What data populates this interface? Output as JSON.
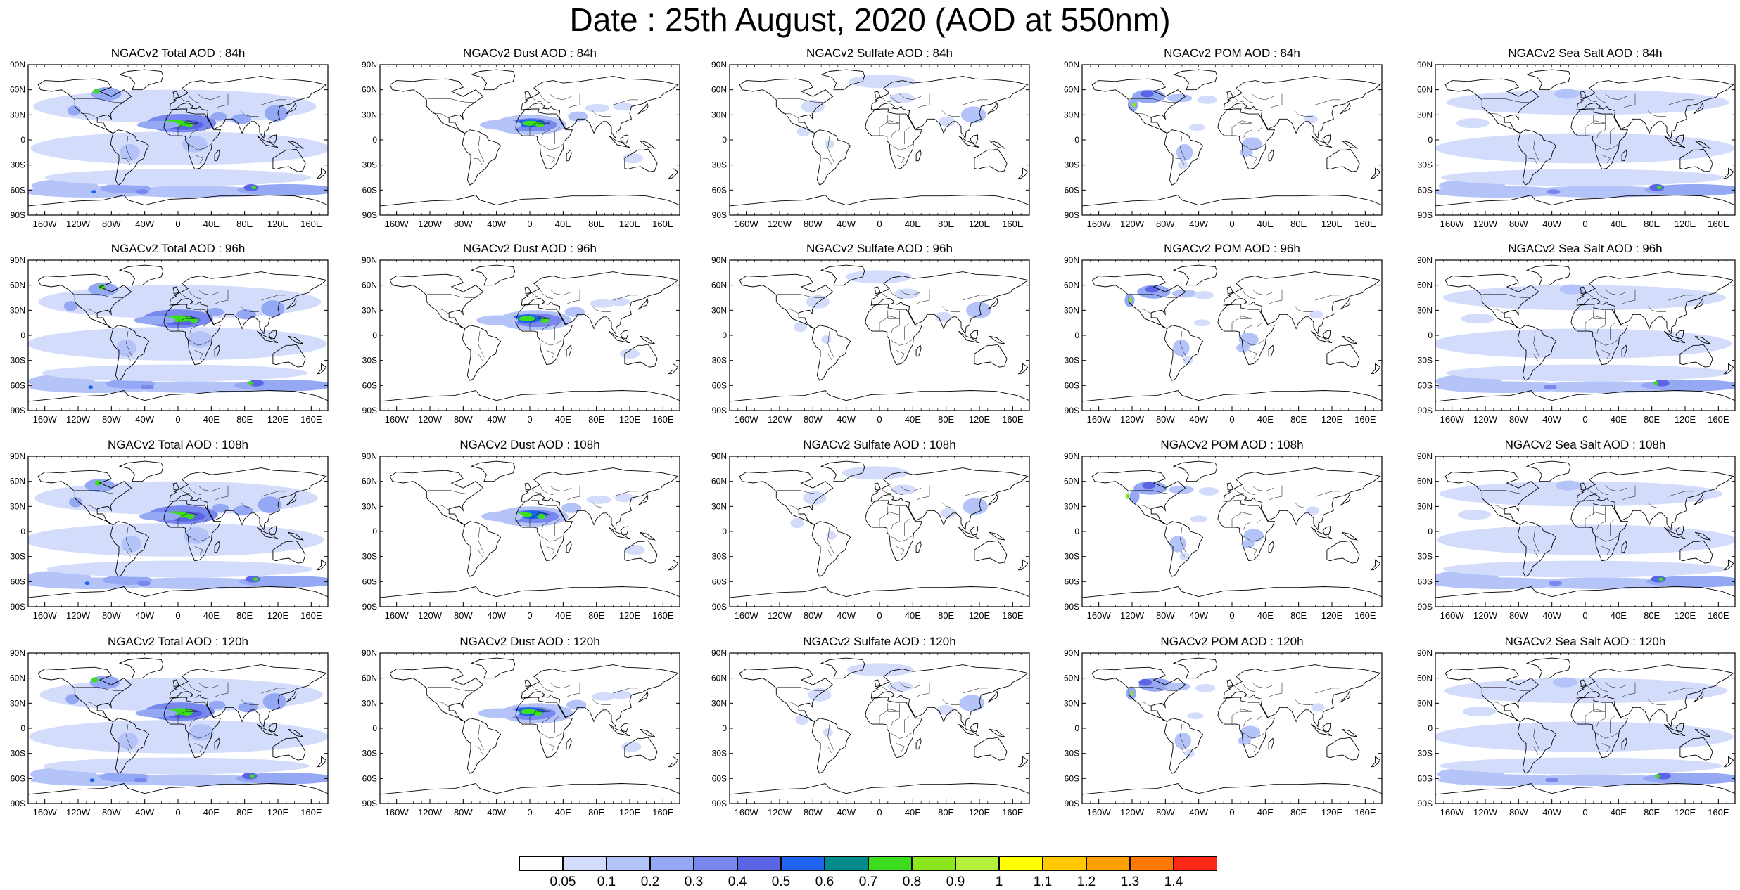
{
  "title": "Date : 25th August, 2020 (AOD at 550nm)",
  "lat_ticks": [
    "90N",
    "60N",
    "30N",
    "0",
    "30S",
    "60S",
    "90S"
  ],
  "lon_ticks": [
    "160W",
    "120W",
    "80W",
    "40W",
    "0",
    "40E",
    "80E",
    "120E",
    "160E"
  ],
  "columns": [
    {
      "species": "total",
      "titles": [
        "NGACv2 Total AOD : 84h",
        "NGACv2 Total AOD : 96h",
        "NGACv2 Total AOD : 108h",
        "NGACv2 Total AOD : 120h"
      ]
    },
    {
      "species": "dust",
      "titles": [
        "NGACv2 Dust AOD : 84h",
        "NGACv2 Dust AOD : 96h",
        "NGACv2 Dust AOD : 108h",
        "NGACv2 Dust AOD : 120h"
      ]
    },
    {
      "species": "sulfate",
      "titles": [
        "NGACv2 Sulfate AOD : 84h",
        "NGACv2 Sulfate AOD : 96h",
        "NGACv2 Sulfate AOD : 108h",
        "NGACv2 Sulfate AOD : 120h"
      ]
    },
    {
      "species": "pom",
      "titles": [
        "NGACv2 POM AOD : 84h",
        "NGACv2 POM AOD : 96h",
        "NGACv2 POM AOD : 108h",
        "NGACv2 POM AOD : 120h"
      ]
    },
    {
      "species": "seasalt",
      "titles": [
        "NGACv2 Sea Salt AOD : 84h",
        "NGACv2 Sea Salt AOD : 96h",
        "NGACv2 Sea Salt AOD : 108h",
        "NGACv2 Sea Salt  AOD : 120h"
      ]
    }
  ],
  "colorbar": {
    "labels": [
      "0.05",
      "0.1",
      "0.2",
      "0.3",
      "0.4",
      "0.5",
      "0.6",
      "0.7",
      "0.8",
      "0.9",
      "1",
      "1.1",
      "1.2",
      "1.3",
      "1.4"
    ],
    "colors": [
      "#ffffff",
      "#d4dcfc",
      "#b4c4f8",
      "#94a8f4",
      "#7888ee",
      "#5a64e4",
      "#1e64f0",
      "#008c8c",
      "#3cdc1e",
      "#8ce61e",
      "#b4f03c",
      "#ffff00",
      "#ffc800",
      "#ffa000",
      "#ff7800",
      "#ff2814"
    ]
  }
}
